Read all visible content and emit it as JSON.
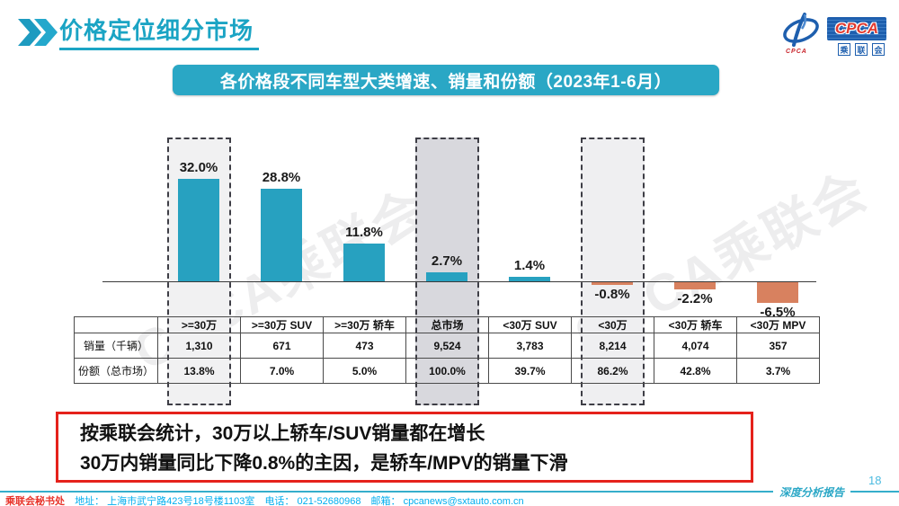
{
  "header": {
    "title": "价格定位细分市场"
  },
  "logo": {
    "acronym": "CPCA",
    "swoosh_caption": "CPCA",
    "chars": [
      "乘",
      "联",
      "会"
    ]
  },
  "banner": {
    "title": "各价格段不同车型大类增速、销量和份额（2023年1-6月）"
  },
  "chart_data": {
    "type": "bar",
    "title": "各价格段不同车型大类增速、销量和份额（2023年1-6月）",
    "categories": [
      ">=30万",
      ">=30万 SUV",
      ">=30万 轿车",
      "总市场",
      "<30万 SUV",
      "<30万",
      "<30万 轿车",
      "<30万 MPV"
    ],
    "values": [
      32.0,
      28.8,
      11.8,
      2.7,
      1.4,
      -0.8,
      -2.2,
      -6.5
    ],
    "labels": [
      "32.0%",
      "28.8%",
      "11.8%",
      "2.7%",
      "1.4%",
      "-0.8%",
      "-2.2%",
      "-6.5%"
    ],
    "xlabel": "",
    "ylabel": "",
    "ylim": [
      -10,
      36
    ],
    "grid": false,
    "legend": false,
    "positive_color": "#27A1C0",
    "negative_color": "#D8815F",
    "highlights": [
      {
        "category": ">=30万",
        "fill": "#F1F1F2"
      },
      {
        "category": "总市场",
        "fill": "#D8D8DD"
      },
      {
        "category": "<30万",
        "fill": "#EFEFF1"
      }
    ],
    "table": {
      "corner_label": "",
      "row_headers": [
        "销量（千辆）",
        "份额（总市场）"
      ],
      "rows": [
        [
          "1,310",
          "671",
          "473",
          "9,524",
          "3,783",
          "8,214",
          "4,074",
          "357"
        ],
        [
          "13.8%",
          "7.0%",
          "5.0%",
          "100.0%",
          "39.7%",
          "86.2%",
          "42.8%",
          "3.7%"
        ]
      ]
    }
  },
  "callout": {
    "line1": "按乘联会统计，30万以上轿车/SUV销量都在增长",
    "line2": "30万内销量同比下降0.8%的主因，是轿车/MPV的销量下滑"
  },
  "watermark": {
    "text": "CPCA乘联会"
  },
  "footer": {
    "org": "乘联会秘书处",
    "address": "地址： 上海市武宁路423号18号楼1103室",
    "phone": "电话： 021-52680968",
    "email": "邮箱： cpcanews@sxtauto.com.cn",
    "report_label": "深度分析报告",
    "page_number": "18"
  }
}
